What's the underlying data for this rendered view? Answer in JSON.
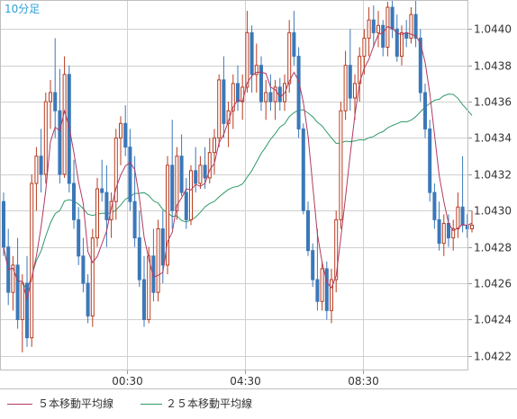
{
  "chart_data": {
    "type": "candlestick",
    "title": "10分足",
    "x_tick_labels": [
      "00:30",
      "04:30",
      "08:30"
    ],
    "y_ticks": [
      1.0422,
      1.0424,
      1.0426,
      1.0428,
      1.043,
      1.0432,
      1.0434,
      1.0436,
      1.0438,
      1.044
    ],
    "y_tick_labels": [
      "1.0422",
      "1.0424",
      "1.0426",
      "1.0428",
      "1.0430",
      "1.0432",
      "1.0434",
      "1.0436",
      "1.0438",
      "1.0440"
    ],
    "ylim": [
      1.04212,
      1.04416
    ],
    "grid": true,
    "legend_position": "bottom",
    "colors": {
      "up_candle": "#b83c20",
      "down_candle": "#3b78b8",
      "ma5": "#b33a5e",
      "ma25": "#2f9a67",
      "grid": "#d0d0d0",
      "title": "#2a9fd6"
    },
    "series": [
      {
        "name": "５本移動平均線",
        "color": "#b33a5e"
      },
      {
        "name": "２５本移動平均線",
        "color": "#2f9a67"
      }
    ],
    "candles": [
      [
        1.04305,
        1.0431,
        1.04275,
        1.0428
      ],
      [
        1.0428,
        1.0429,
        1.04248,
        1.04255
      ],
      [
        1.04255,
        1.04275,
        1.04245,
        1.0427
      ],
      [
        1.0427,
        1.04285,
        1.04235,
        1.0424
      ],
      [
        1.0424,
        1.04265,
        1.04222,
        1.0426
      ],
      [
        1.0426,
        1.04275,
        1.04225,
        1.0423
      ],
      [
        1.0423,
        1.0432,
        1.04225,
        1.04315
      ],
      [
        1.04315,
        1.04335,
        1.043,
        1.0433
      ],
      [
        1.0433,
        1.04345,
        1.0431,
        1.0432
      ],
      [
        1.0432,
        1.04365,
        1.04315,
        1.0436
      ],
      [
        1.0436,
        1.04372,
        1.04345,
        1.04365
      ],
      [
        1.04365,
        1.04395,
        1.0434,
        1.04355
      ],
      [
        1.04355,
        1.04378,
        1.04315,
        1.0432
      ],
      [
        1.0432,
        1.04385,
        1.04318,
        1.04375
      ],
      [
        1.04375,
        1.0438,
        1.0431,
        1.04315
      ],
      [
        1.04315,
        1.04328,
        1.0429,
        1.04295
      ],
      [
        1.04295,
        1.04302,
        1.0427,
        1.04275
      ],
      [
        1.04275,
        1.04285,
        1.04255,
        1.0426
      ],
      [
        1.0426,
        1.04265,
        1.04238,
        1.04242
      ],
      [
        1.04242,
        1.0429,
        1.04236,
        1.04285
      ],
      [
        1.04285,
        1.04318,
        1.0428,
        1.04312
      ],
      [
        1.04312,
        1.04328,
        1.04305,
        1.0431
      ],
      [
        1.0431,
        1.04325,
        1.0428,
        1.04295
      ],
      [
        1.04295,
        1.0431,
        1.04285,
        1.04305
      ],
      [
        1.04305,
        1.04345,
        1.04295,
        1.0434
      ],
      [
        1.0434,
        1.04352,
        1.04325,
        1.04348
      ],
      [
        1.04348,
        1.04358,
        1.0433,
        1.04335
      ],
      [
        1.04335,
        1.04345,
        1.043,
        1.04305
      ],
      [
        1.04305,
        1.0433,
        1.0428,
        1.04285
      ],
      [
        1.04285,
        1.043,
        1.04258,
        1.04262
      ],
      [
        1.04262,
        1.04275,
        1.04236,
        1.0424
      ],
      [
        1.0424,
        1.0428,
        1.04238,
        1.04275
      ],
      [
        1.04275,
        1.0429,
        1.0425,
        1.04255
      ],
      [
        1.04255,
        1.04295,
        1.0425,
        1.0429
      ],
      [
        1.0429,
        1.043,
        1.0426,
        1.0427
      ],
      [
        1.0427,
        1.0433,
        1.04265,
        1.04325
      ],
      [
        1.04325,
        1.0435,
        1.0429,
        1.043
      ],
      [
        1.043,
        1.04335,
        1.04295,
        1.0433
      ],
      [
        1.0433,
        1.04342,
        1.04308,
        1.0431
      ],
      [
        1.0431,
        1.04318,
        1.0429,
        1.04295
      ],
      [
        1.04295,
        1.04325,
        1.04292,
        1.04322
      ],
      [
        1.04322,
        1.04335,
        1.0431,
        1.04315
      ],
      [
        1.04315,
        1.0433,
        1.04312,
        1.04325
      ],
      [
        1.04325,
        1.04335,
        1.04312,
        1.04318
      ],
      [
        1.04318,
        1.0434,
        1.04315,
        1.04332
      ],
      [
        1.04332,
        1.04345,
        1.0432,
        1.0434
      ],
      [
        1.0434,
        1.04375,
        1.04335,
        1.04372
      ],
      [
        1.04372,
        1.04385,
        1.0434,
        1.04348
      ],
      [
        1.04348,
        1.0436,
        1.04335,
        1.04355
      ],
      [
        1.04355,
        1.04375,
        1.04345,
        1.0437
      ],
      [
        1.0437,
        1.0438,
        1.04355,
        1.0436
      ],
      [
        1.0436,
        1.04375,
        1.0435,
        1.04368
      ],
      [
        1.04368,
        1.0441,
        1.04365,
        1.04398
      ],
      [
        1.04398,
        1.04402,
        1.04365,
        1.04375
      ],
      [
        1.04375,
        1.04392,
        1.04365,
        1.0438
      ],
      [
        1.0438,
        1.04385,
        1.04355,
        1.0436
      ],
      [
        1.0436,
        1.04372,
        1.0435,
        1.04365
      ],
      [
        1.04365,
        1.04375,
        1.04355,
        1.0436
      ],
      [
        1.0436,
        1.04372,
        1.0435,
        1.04368
      ],
      [
        1.04368,
        1.04373,
        1.04355,
        1.0436
      ],
      [
        1.0436,
        1.04375,
        1.04355,
        1.0437
      ],
      [
        1.0437,
        1.04405,
        1.04365,
        1.04398
      ],
      [
        1.04398,
        1.0441,
        1.0438,
        1.04385
      ],
      [
        1.04385,
        1.0439,
        1.0434,
        1.04345
      ],
      [
        1.04345,
        1.04348,
        1.04298,
        1.043
      ],
      [
        1.043,
        1.04305,
        1.04275,
        1.04278
      ],
      [
        1.04278,
        1.04282,
        1.04258,
        1.04262
      ],
      [
        1.04262,
        1.0429,
        1.04245,
        1.0425
      ],
      [
        1.0425,
        1.04272,
        1.04245,
        1.04268
      ],
      [
        1.04268,
        1.04272,
        1.0424,
        1.04245
      ],
      [
        1.04245,
        1.04268,
        1.04238,
        1.04262
      ],
      [
        1.04262,
        1.043,
        1.04255,
        1.04295
      ],
      [
        1.04295,
        1.0436,
        1.0429,
        1.04355
      ],
      [
        1.04355,
        1.04388,
        1.0435,
        1.0438
      ],
      [
        1.0438,
        1.044,
        1.04355,
        1.04362
      ],
      [
        1.04362,
        1.04375,
        1.0435,
        1.0437
      ],
      [
        1.0437,
        1.0439,
        1.0436,
        1.04385
      ],
      [
        1.04385,
        1.044,
        1.04375,
        1.04395
      ],
      [
        1.04395,
        1.04412,
        1.04385,
        1.04405
      ],
      [
        1.04405,
        1.04413,
        1.0439,
        1.04398
      ],
      [
        1.04398,
        1.0441,
        1.0439,
        1.04402
      ],
      [
        1.04402,
        1.04405,
        1.04385,
        1.0439
      ],
      [
        1.0439,
        1.04415,
        1.04385,
        1.04412
      ],
      [
        1.04412,
        1.04418,
        1.04395,
        1.044
      ],
      [
        1.044,
        1.04408,
        1.04382,
        1.04385
      ],
      [
        1.04385,
        1.04402,
        1.0438,
        1.04398
      ],
      [
        1.04398,
        1.04405,
        1.0439,
        1.04395
      ],
      [
        1.04395,
        1.04412,
        1.04392,
        1.04408
      ],
      [
        1.04408,
        1.04422,
        1.0439,
        1.04395
      ],
      [
        1.04395,
        1.044,
        1.0436,
        1.04365
      ],
      [
        1.04365,
        1.0437,
        1.0434,
        1.04345
      ],
      [
        1.04345,
        1.0435,
        1.04305,
        1.0431
      ],
      [
        1.0431,
        1.04315,
        1.0429,
        1.04295
      ],
      [
        1.04295,
        1.04305,
        1.04278,
        1.04282
      ],
      [
        1.04282,
        1.04298,
        1.04275,
        1.04293
      ],
      [
        1.04293,
        1.04298,
        1.0428,
        1.04285
      ],
      [
        1.04285,
        1.04295,
        1.04278,
        1.0429
      ],
      [
        1.0429,
        1.0431,
        1.04285,
        1.04302
      ],
      [
        1.04302,
        1.0433,
        1.04288,
        1.04292
      ],
      [
        1.04292,
        1.04298,
        1.04285,
        1.0429
      ],
      [
        1.0429,
        1.043,
        1.04288,
        1.04292
      ]
    ]
  },
  "legend": {
    "ma5_label": "５本移動平均線",
    "ma25_label": "２５本移動平均線"
  }
}
